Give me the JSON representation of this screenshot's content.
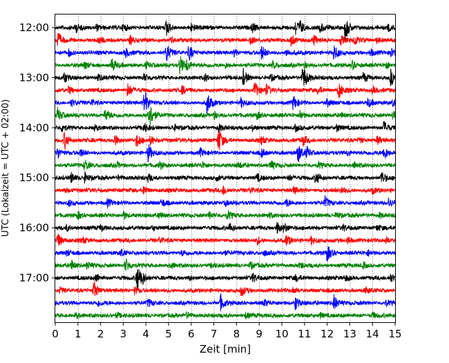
{
  "chart_data": {
    "type": "line",
    "title": "",
    "xlabel": "Zeit  [min]",
    "ylabel": "UTC (Lokalzeit = UTC + 02:00)",
    "xlim": [
      0,
      15
    ],
    "xticks": [
      0,
      1,
      2,
      3,
      4,
      5,
      6,
      7,
      8,
      9,
      10,
      11,
      12,
      13,
      14,
      15
    ],
    "xtick_labels": [
      "0",
      "1",
      "2",
      "3",
      "4",
      "5",
      "6",
      "7",
      "8",
      "9",
      "10",
      "11",
      "12",
      "13",
      "14",
      "15"
    ],
    "yticks": [
      {
        "label": "12:00",
        "trace": 0
      },
      {
        "label": "13:00",
        "trace": 4
      },
      {
        "label": "14:00",
        "trace": 8
      },
      {
        "label": "15:00",
        "trace": 12
      },
      {
        "label": "16:00",
        "trace": 16
      },
      {
        "label": "17:00",
        "trace": 20
      }
    ],
    "grid": "x",
    "trace_minutes": 15,
    "color_cycle": [
      "#000000",
      "#ff0000",
      "#0000ff",
      "#008000"
    ],
    "series": [
      {
        "start": "12:00",
        "events": [
          [
            0.9,
            0.5
          ],
          [
            1.8,
            0.4
          ],
          [
            3.0,
            0.4
          ],
          [
            4.9,
            0.9
          ],
          [
            6.0,
            0.4
          ],
          [
            8.7,
            0.5
          ],
          [
            10.6,
            0.9
          ],
          [
            10.8,
            0.6
          ],
          [
            11.7,
            0.5
          ],
          [
            12.8,
            1.5
          ],
          [
            14.7,
            0.4
          ]
        ]
      },
      {
        "start": "12:15",
        "events": [
          [
            0.1,
            0.9
          ],
          [
            1.9,
            0.4
          ],
          [
            3.3,
            0.5
          ],
          [
            5.1,
            0.4
          ],
          [
            8.6,
            0.5
          ],
          [
            10.4,
            0.7
          ],
          [
            11.4,
            0.5
          ],
          [
            12.6,
            0.5
          ],
          [
            13.2,
            0.5
          ],
          [
            14.2,
            0.3
          ]
        ]
      },
      {
        "start": "12:30",
        "events": [
          [
            0.6,
            0.4
          ],
          [
            3.1,
            0.5
          ],
          [
            4.9,
            1.1
          ],
          [
            5.9,
            0.9
          ],
          [
            7.9,
            0.4
          ],
          [
            9.1,
            0.8
          ],
          [
            10.2,
            0.4
          ],
          [
            12.3,
            0.9
          ],
          [
            13.9,
            0.4
          ],
          [
            14.8,
            0.5
          ]
        ]
      },
      {
        "start": "12:45",
        "events": [
          [
            1.3,
            0.4
          ],
          [
            2.5,
            0.8
          ],
          [
            4.0,
            0.4
          ],
          [
            5.5,
            1.1
          ],
          [
            5.8,
            0.6
          ],
          [
            7.5,
            0.3
          ],
          [
            9.6,
            0.4
          ],
          [
            11.0,
            0.3
          ],
          [
            13.1,
            0.5
          ],
          [
            14.6,
            0.4
          ]
        ]
      },
      {
        "start": "13:00",
        "events": [
          [
            0.4,
            0.5
          ],
          [
            1.9,
            0.3
          ],
          [
            3.9,
            0.4
          ],
          [
            6.6,
            0.4
          ],
          [
            8.3,
            0.9
          ],
          [
            9.5,
            0.3
          ],
          [
            10.9,
            0.9
          ],
          [
            11.0,
            0.6
          ],
          [
            13.6,
            0.5
          ],
          [
            14.8,
            0.9
          ]
        ]
      },
      {
        "start": "13:15",
        "events": [
          [
            0.6,
            0.4
          ],
          [
            3.2,
            0.8
          ],
          [
            5.6,
            0.4
          ],
          [
            8.8,
            1.0
          ],
          [
            9.3,
            0.6
          ],
          [
            11.6,
            0.4
          ],
          [
            12.5,
            1.0
          ],
          [
            14.0,
            0.4
          ]
        ]
      },
      {
        "start": "13:30",
        "events": [
          [
            0.7,
            0.4
          ],
          [
            1.6,
            0.3
          ],
          [
            3.9,
            0.8
          ],
          [
            4.0,
            0.7
          ],
          [
            6.7,
            1.3
          ],
          [
            8.2,
            0.5
          ],
          [
            10.5,
            0.8
          ],
          [
            12.0,
            0.4
          ],
          [
            13.8,
            0.5
          ],
          [
            14.9,
            0.4
          ]
        ]
      },
      {
        "start": "13:45",
        "events": [
          [
            0.1,
            0.8
          ],
          [
            2.2,
            0.7
          ],
          [
            4.1,
            1.1
          ],
          [
            4.2,
            0.6
          ],
          [
            7.0,
            0.4
          ],
          [
            8.9,
            0.4
          ],
          [
            10.8,
            0.6
          ],
          [
            12.6,
            0.3
          ],
          [
            14.9,
            0.5
          ]
        ]
      },
      {
        "start": "14:00",
        "events": [
          [
            0.3,
            0.4
          ],
          [
            1.7,
            0.3
          ],
          [
            3.9,
            0.5
          ],
          [
            5.2,
            0.4
          ],
          [
            7.2,
            0.4
          ],
          [
            8.7,
            0.3
          ],
          [
            10.6,
            0.4
          ],
          [
            12.4,
            0.5
          ],
          [
            14.5,
            0.7
          ]
        ]
      },
      {
        "start": "14:15",
        "events": [
          [
            0.4,
            1.0
          ],
          [
            2.6,
            0.7
          ],
          [
            3.6,
            0.8
          ],
          [
            4.2,
            0.5
          ],
          [
            7.2,
            1.5
          ],
          [
            9.1,
            0.4
          ],
          [
            10.9,
            0.6
          ],
          [
            13.4,
            0.3
          ],
          [
            14.2,
            0.4
          ]
        ]
      },
      {
        "start": "14:30",
        "events": [
          [
            0.1,
            0.7
          ],
          [
            1.1,
            0.4
          ],
          [
            4.1,
            1.0
          ],
          [
            6.4,
            0.4
          ],
          [
            9.1,
            0.5
          ],
          [
            10.7,
            1.2
          ],
          [
            11.1,
            0.6
          ],
          [
            12.9,
            0.3
          ],
          [
            14.5,
            0.8
          ]
        ]
      },
      {
        "start": "14:45",
        "events": [
          [
            1.3,
            0.7
          ],
          [
            2.7,
            0.3
          ],
          [
            4.6,
            0.4
          ],
          [
            6.5,
            0.3
          ],
          [
            8.1,
            0.3
          ],
          [
            9.5,
            0.5
          ],
          [
            11.6,
            0.3
          ],
          [
            13.2,
            0.3
          ]
        ]
      },
      {
        "start": "15:00",
        "events": [
          [
            0.7,
            0.6
          ],
          [
            1.3,
            0.5
          ],
          [
            2.8,
            0.3
          ],
          [
            4.1,
            0.4
          ],
          [
            7.1,
            0.3
          ],
          [
            8.9,
            0.4
          ],
          [
            10.3,
            0.4
          ],
          [
            11.5,
            0.7
          ],
          [
            14.4,
            0.7
          ]
        ]
      },
      {
        "start": "15:15",
        "events": [
          [
            0.4,
            0.3
          ],
          [
            3.9,
            0.5
          ],
          [
            7.4,
            0.5
          ],
          [
            8.6,
            0.3
          ],
          [
            10.5,
            0.4
          ],
          [
            12.6,
            0.4
          ],
          [
            14.0,
            0.3
          ]
        ]
      },
      {
        "start": "15:30",
        "events": [
          [
            0.6,
            0.3
          ],
          [
            2.3,
            0.4
          ],
          [
            4.7,
            0.4
          ],
          [
            7.5,
            0.3
          ],
          [
            10.2,
            0.4
          ],
          [
            11.9,
            0.6
          ],
          [
            14.7,
            0.6
          ]
        ]
      },
      {
        "start": "15:45",
        "events": [
          [
            1.0,
            0.4
          ],
          [
            3.0,
            0.5
          ],
          [
            4.6,
            0.4
          ],
          [
            6.8,
            0.4
          ],
          [
            7.6,
            0.5
          ],
          [
            9.4,
            0.3
          ],
          [
            12.4,
            0.4
          ],
          [
            14.3,
            0.3
          ]
        ]
      },
      {
        "start": "16:00",
        "events": [
          [
            0.5,
            0.3
          ],
          [
            2.0,
            0.3
          ],
          [
            4.3,
            0.3
          ],
          [
            7.7,
            0.5
          ],
          [
            9.8,
            0.7
          ],
          [
            10.1,
            0.5
          ],
          [
            12.7,
            0.3
          ],
          [
            14.2,
            0.3
          ]
        ]
      },
      {
        "start": "16:15",
        "events": [
          [
            0.1,
            0.9
          ],
          [
            1.2,
            0.3
          ],
          [
            4.6,
            0.3
          ],
          [
            8.9,
            0.4
          ],
          [
            10.2,
            0.6
          ],
          [
            11.3,
            0.5
          ],
          [
            12.9,
            0.4
          ],
          [
            14.6,
            0.3
          ]
        ]
      },
      {
        "start": "16:30",
        "events": [
          [
            0.5,
            0.3
          ],
          [
            2.9,
            0.4
          ],
          [
            5.6,
            0.3
          ],
          [
            7.4,
            0.3
          ],
          [
            9.2,
            0.3
          ],
          [
            12.0,
            0.9
          ],
          [
            13.8,
            0.3
          ]
        ]
      },
      {
        "start": "16:45",
        "events": [
          [
            0.7,
            0.6
          ],
          [
            1.4,
            0.4
          ],
          [
            3.1,
            0.8
          ],
          [
            5.1,
            0.3
          ],
          [
            6.9,
            0.3
          ],
          [
            8.6,
            0.4
          ],
          [
            10.8,
            0.3
          ],
          [
            13.6,
            0.3
          ]
        ]
      },
      {
        "start": "17:00",
        "events": [
          [
            1.8,
            0.5
          ],
          [
            3.6,
            1.6
          ],
          [
            3.8,
            0.6
          ],
          [
            5.9,
            0.3
          ],
          [
            8.7,
            0.5
          ],
          [
            10.6,
            0.3
          ],
          [
            12.8,
            0.3
          ],
          [
            14.8,
            0.4
          ]
        ]
      },
      {
        "start": "17:15",
        "events": [
          [
            0.2,
            0.3
          ],
          [
            1.7,
            1.1
          ],
          [
            3.5,
            0.4
          ],
          [
            8.2,
            0.6
          ],
          [
            10.5,
            0.3
          ],
          [
            13.7,
            0.3
          ]
        ]
      },
      {
        "start": "17:30",
        "events": [
          [
            1.9,
            0.3
          ],
          [
            4.1,
            0.4
          ],
          [
            7.3,
            0.9
          ],
          [
            9.2,
            0.4
          ],
          [
            10.6,
            0.8
          ],
          [
            12.3,
            0.9
          ],
          [
            14.6,
            0.3
          ]
        ]
      },
      {
        "start": "17:45",
        "events": [
          [
            0.9,
            0.3
          ],
          [
            2.7,
            0.3
          ],
          [
            5.8,
            0.3
          ],
          [
            8.4,
            0.3
          ],
          [
            11.7,
            0.3
          ],
          [
            14.0,
            0.3
          ]
        ]
      }
    ]
  }
}
